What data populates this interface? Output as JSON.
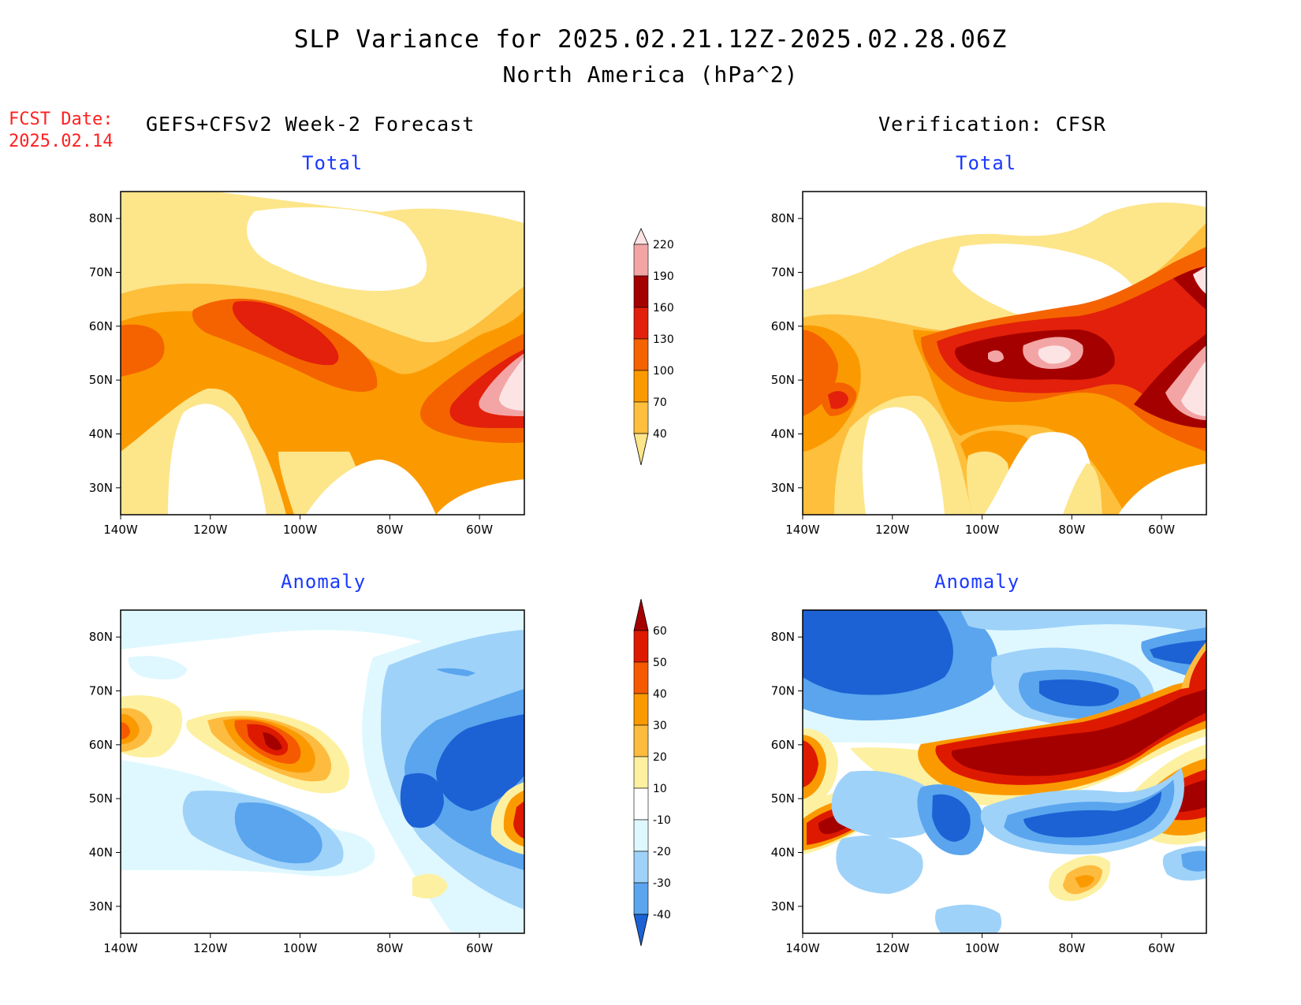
{
  "header": {
    "title_line1": "SLP Variance for 2025.02.21.12Z-2025.02.28.06Z",
    "title_line2": "North America (hPa^2)",
    "fcst_label": "FCST Date:",
    "fcst_date": "2025.02.14",
    "left_column": "GEFS+CFSv2 Week-2 Forecast",
    "right_column": "Verification: CFSR"
  },
  "panels": [
    {
      "id": "fcst_total",
      "subtitle": "Total"
    },
    {
      "id": "verif_total",
      "subtitle": "Total"
    },
    {
      "id": "fcst_anomaly",
      "subtitle": "Anomaly"
    },
    {
      "id": "verif_anomaly",
      "subtitle": "Anomaly"
    }
  ],
  "axes": {
    "lat_labels": [
      "80N",
      "70N",
      "60N",
      "50N",
      "40N",
      "30N"
    ],
    "lon_labels": [
      "140W",
      "120W",
      "100W",
      "80W",
      "60W"
    ],
    "lon_range": [
      -140,
      -50
    ],
    "lat_range": [
      25,
      85
    ]
  },
  "total_colorbar": {
    "levels": [
      "40",
      "70",
      "100",
      "130",
      "160",
      "190",
      "220"
    ],
    "colors": [
      "#fde58a",
      "#fdbf3c",
      "#fb9a00",
      "#f56300",
      "#e2200b",
      "#a50000",
      "#f3a5a5",
      "#fce4e4"
    ]
  },
  "anomaly_colorbar": {
    "levels": [
      "60",
      "50",
      "40",
      "30",
      "20",
      "10",
      "-10",
      "-20",
      "-30",
      "-40"
    ],
    "colors_top_to_bottom": [
      "#a50000",
      "#dd1a00",
      "#f55a00",
      "#fb9a00",
      "#fdbb40",
      "#fdf0a0",
      "#ffffff",
      "#dff8ff",
      "#9fd2f9",
      "#5aa5ee",
      "#1c62d4"
    ]
  },
  "map_fields": {
    "fcst_total_zones": [
      "Alaska/Pacific 100-130",
      "Central Canada 130-160",
      "Atlantic coast 160-220+",
      "Arctic islands 40-70"
    ],
    "verif_total_zones": [
      "Hudson Bay 160-220",
      "Atlantic coast 190-220+",
      "Pacific coast 130-160"
    ],
    "fcst_anomaly_zones": [
      "Central Canada +40 to +60",
      "Eastern US/Canada -30 to -40",
      "Western US -20 to -40"
    ],
    "verif_anomaly_zones": [
      "Canada belt +50 to +60",
      "Arctic -30 to -40",
      "Eastern US -30 to -40"
    ]
  }
}
